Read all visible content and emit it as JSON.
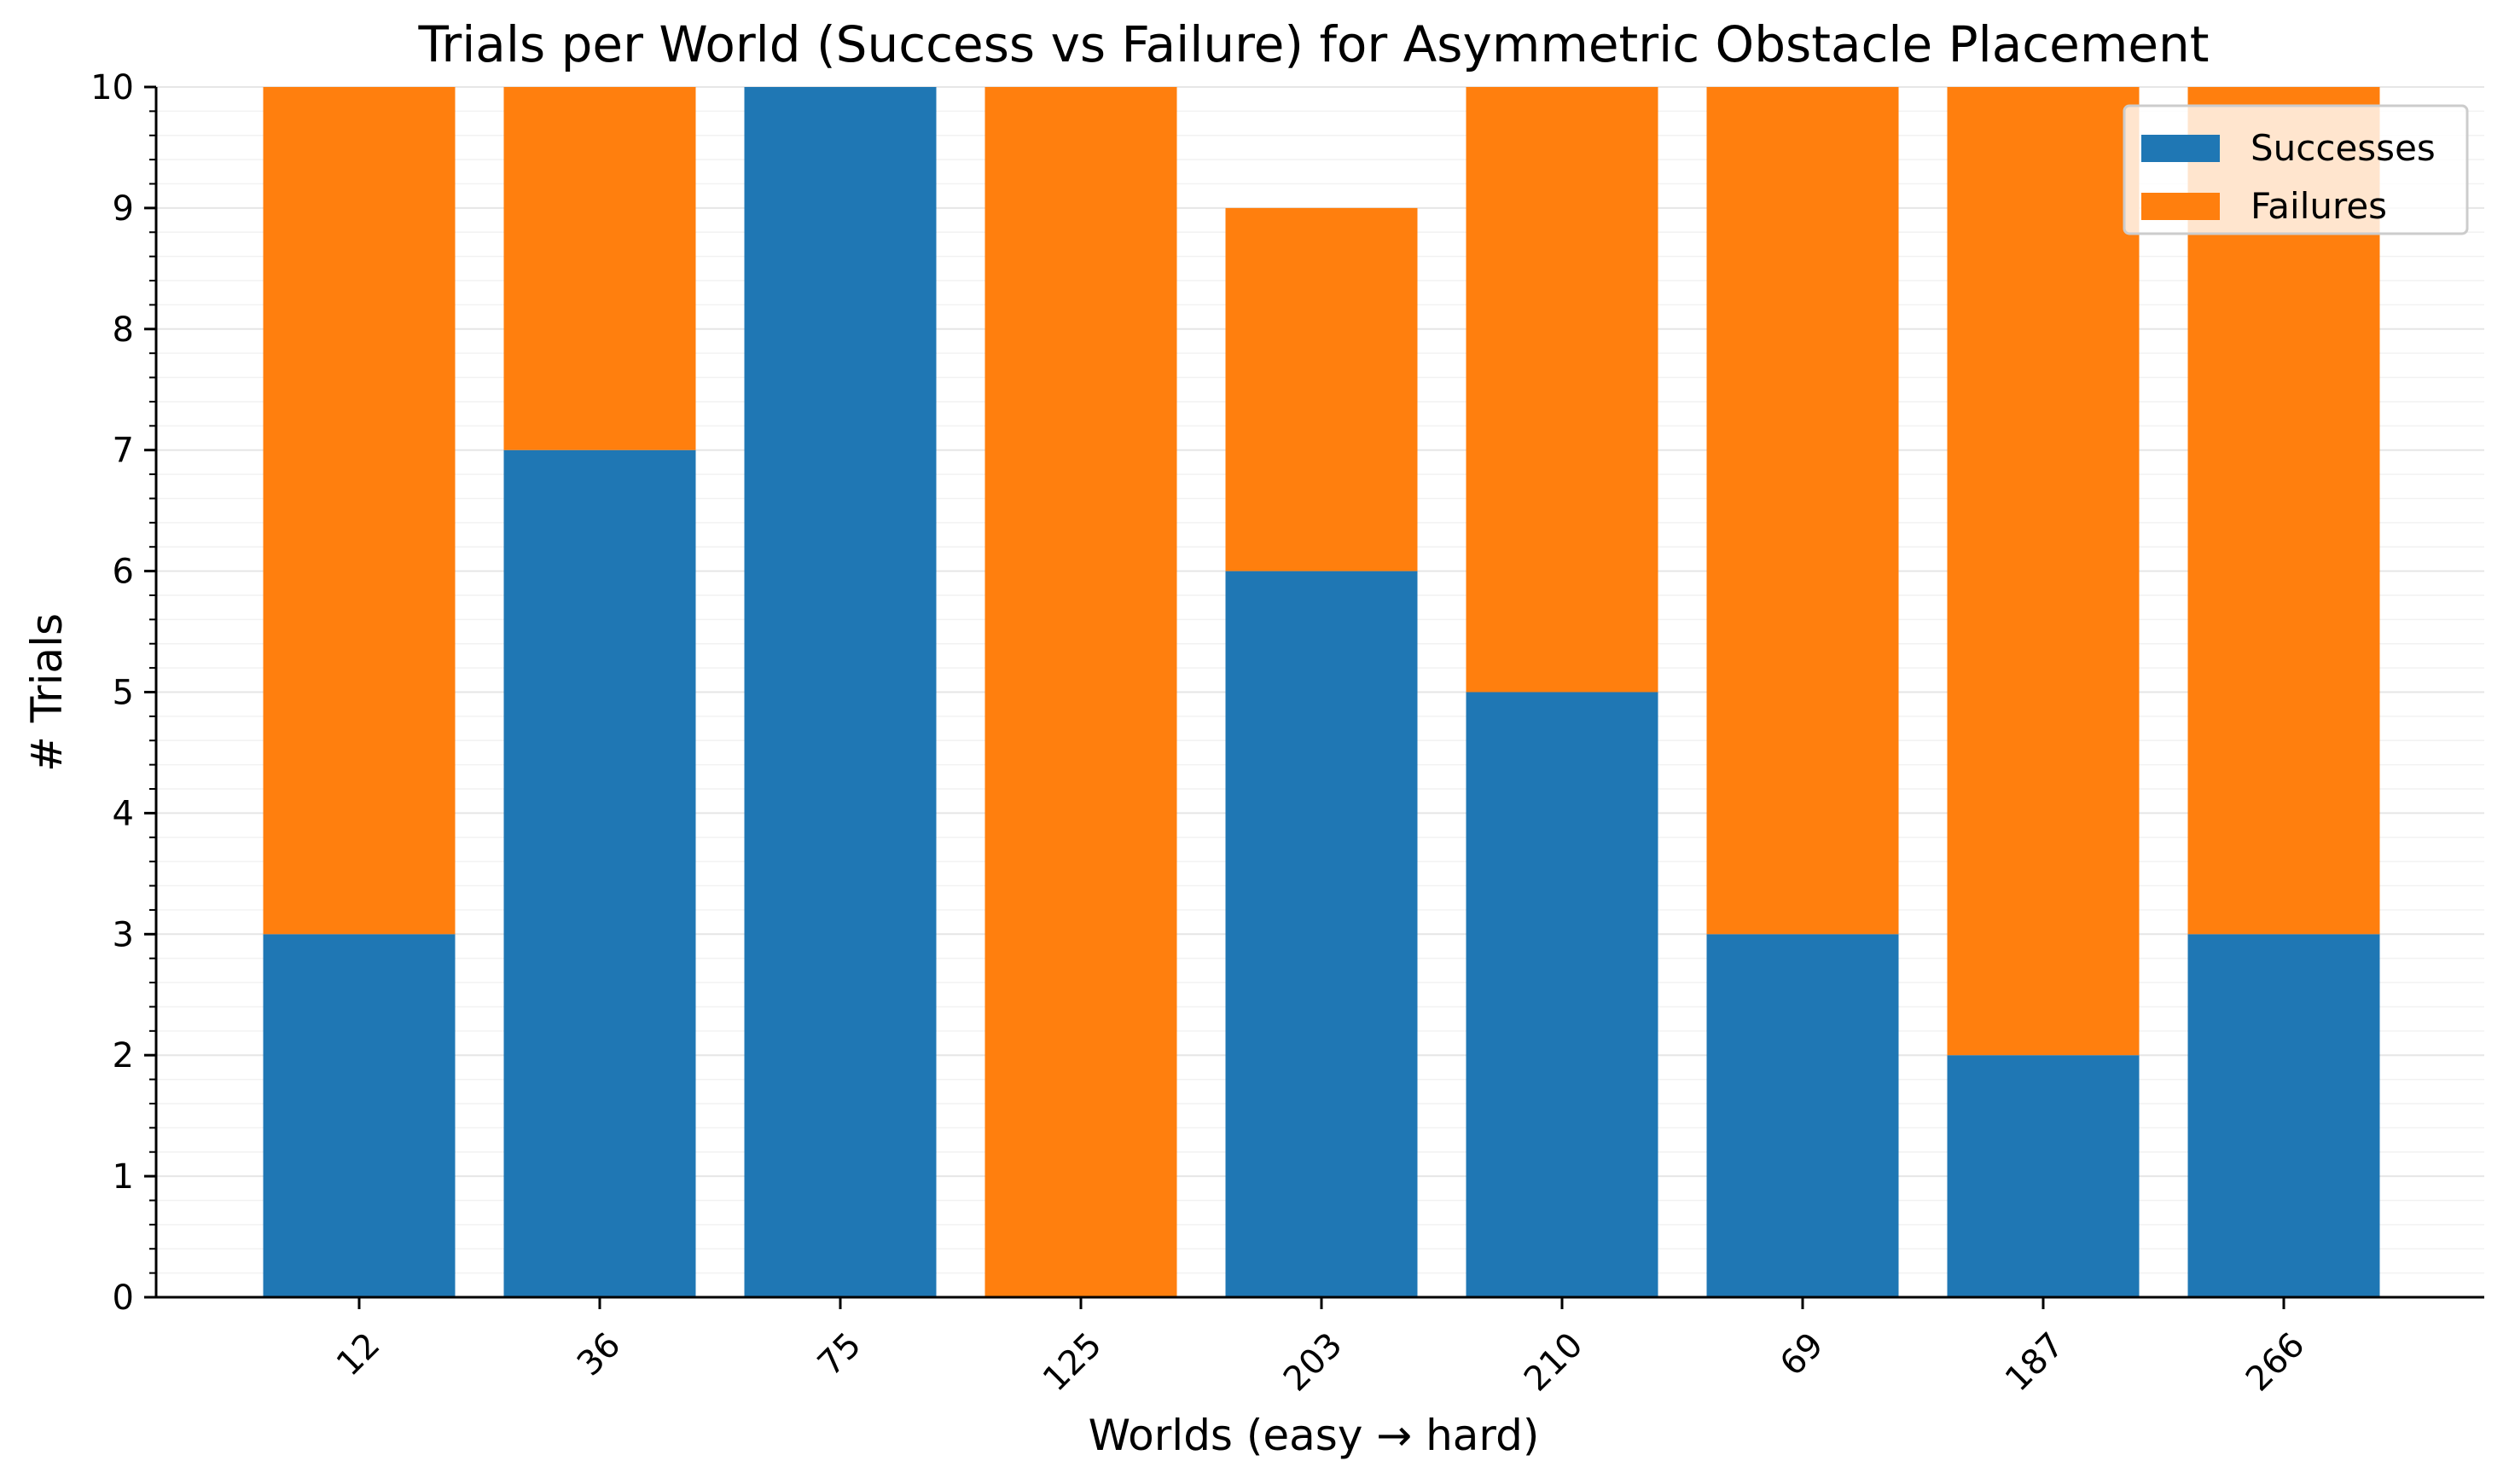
{
  "chart_data": {
    "type": "bar",
    "stacked": true,
    "title": "Trials per World (Success vs Failure) for Asymmetric Obstacle Placement",
    "xlabel": "Worlds (easy → hard)",
    "ylabel": "# Trials",
    "categories": [
      "12",
      "36",
      "75",
      "125",
      "203",
      "210",
      "69",
      "187",
      "266"
    ],
    "series": [
      {
        "name": "Successes",
        "color": "#1f77b4",
        "values": [
          3,
          7,
          10,
          0,
          6,
          5,
          3,
          2,
          3
        ]
      },
      {
        "name": "Failures",
        "color": "#ff7f0e",
        "values": [
          7,
          3,
          0,
          10,
          3,
          5,
          7,
          8,
          7
        ]
      }
    ],
    "ylim": [
      0,
      10
    ],
    "yticks": [
      0,
      1,
      2,
      3,
      4,
      5,
      6,
      7,
      8,
      9,
      10
    ],
    "grid": true,
    "legend_position": "top-right"
  }
}
